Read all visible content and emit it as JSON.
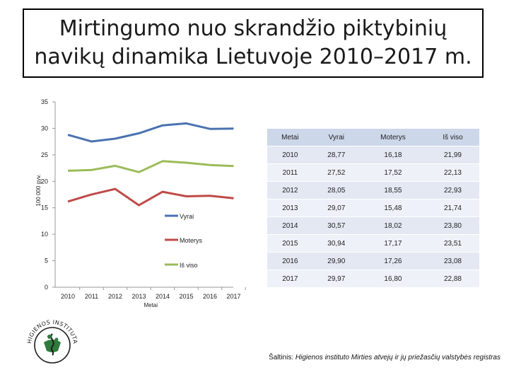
{
  "title": {
    "line1": "Mirtingumo nuo skrandžio piktybinių",
    "line2": "navikų dinamika Lietuvoje 2010–2017 m."
  },
  "chart_data": {
    "type": "line",
    "categories": [
      "2010",
      "2011",
      "2012",
      "2013",
      "2014",
      "2015",
      "2016",
      "2017"
    ],
    "xlabel": "Metai",
    "ylabel": "100 000 gyv.",
    "ylim": [
      0,
      35
    ],
    "yticks": [
      0,
      5,
      10,
      15,
      20,
      25,
      30,
      35
    ],
    "grid": false,
    "legend_position": "right",
    "series": [
      {
        "name": "Vyrai",
        "color": "#4a72b0",
        "values": [
          28.77,
          27.52,
          28.05,
          29.07,
          30.57,
          30.94,
          29.9,
          29.97
        ]
      },
      {
        "name": "Moterys",
        "color": "#be4b48",
        "values": [
          16.18,
          17.52,
          18.55,
          15.48,
          18.02,
          17.17,
          17.26,
          16.8
        ]
      },
      {
        "name": "Iš viso",
        "color": "#9bbb59",
        "values": [
          21.99,
          22.13,
          22.93,
          21.74,
          23.8,
          23.51,
          23.08,
          22.88
        ]
      }
    ]
  },
  "table": {
    "headers": [
      "Metai",
      "Vyrai",
      "Moterys",
      "Iš viso"
    ],
    "rows": [
      [
        "2010",
        "28,77",
        "16,18",
        "21,99"
      ],
      [
        "2011",
        "27,52",
        "17,52",
        "22,13"
      ],
      [
        "2012",
        "28,05",
        "18,55",
        "22,93"
      ],
      [
        "2013",
        "29,07",
        "15,48",
        "21,74"
      ],
      [
        "2014",
        "30,57",
        "18,02",
        "23,80"
      ],
      [
        "2015",
        "30,94",
        "17,17",
        "23,51"
      ],
      [
        "2016",
        "29,90",
        "17,26",
        "23,08"
      ],
      [
        "2017",
        "29,97",
        "16,80",
        "22,88"
      ]
    ]
  },
  "logo": {
    "text": "HIGIENOS INSTITUTAS",
    "icon": "higienos-institutas-logo"
  },
  "source": {
    "prefix": "Šaltinis: ",
    "text": "Higienos instituto Mirties atvejų ir jų priežasčių valstybės registras"
  }
}
